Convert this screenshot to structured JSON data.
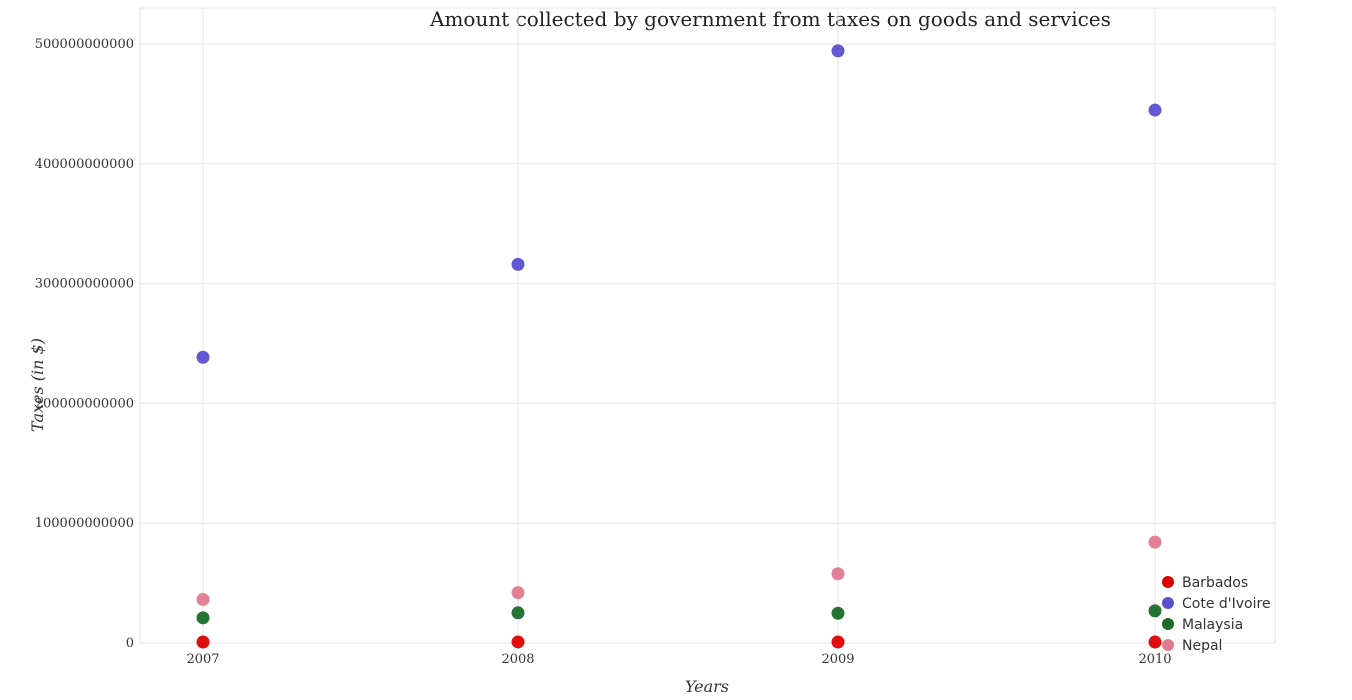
{
  "chart_data": {
    "type": "scatter",
    "title": "Amount collected by government from taxes on goods and services",
    "xlabel": "Years",
    "ylabel": "Taxes (in $)",
    "categories": [
      "2007",
      "2008",
      "2009",
      "2010"
    ],
    "ylim": [
      0,
      530000000000
    ],
    "yticks": [
      0,
      100000000000,
      200000000000,
      300000000000,
      400000000000,
      500000000000
    ],
    "ytick_labels": [
      "0",
      "100000000000",
      "200000000000",
      "300000000000",
      "400000000000",
      "500000000000"
    ],
    "grid": true,
    "legend_position": "bottom-right",
    "series": [
      {
        "name": "Barbados",
        "color": "#dd0000",
        "values": [
          850000000,
          880000000,
          820000000,
          860000000
        ]
      },
      {
        "name": "Cote d'Ivoire",
        "color": "#5a4fcf",
        "values": [
          238500000000,
          316000000000,
          494200000000,
          444800000000
        ]
      },
      {
        "name": "Malaysia",
        "color": "#1a6b2a",
        "values": [
          21000000000,
          25200000000,
          24800000000,
          26800000000
        ]
      },
      {
        "name": "Nepal",
        "color": "#e07a8f",
        "values": [
          36300000000,
          42000000000,
          57800000000,
          84200000000
        ]
      }
    ]
  }
}
